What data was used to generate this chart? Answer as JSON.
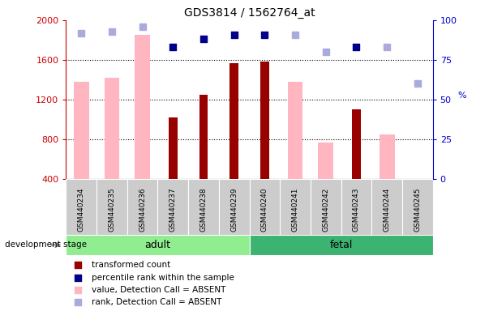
{
  "title": "GDS3814 / 1562764_at",
  "samples": [
    "GSM440234",
    "GSM440235",
    "GSM440236",
    "GSM440237",
    "GSM440238",
    "GSM440239",
    "GSM440240",
    "GSM440241",
    "GSM440242",
    "GSM440243",
    "GSM440244",
    "GSM440245"
  ],
  "groups": [
    "adult",
    "adult",
    "adult",
    "adult",
    "adult",
    "adult",
    "fetal",
    "fetal",
    "fetal",
    "fetal",
    "fetal",
    "fetal"
  ],
  "transformed_count": [
    null,
    null,
    null,
    1020,
    1250,
    1570,
    1580,
    null,
    null,
    1100,
    null,
    null
  ],
  "percentile_rank": [
    null,
    null,
    null,
    83,
    88,
    91,
    91,
    null,
    null,
    83,
    null,
    null
  ],
  "absent_value": [
    1380,
    1420,
    1850,
    null,
    null,
    null,
    null,
    1380,
    770,
    null,
    850,
    null
  ],
  "absent_rank": [
    92,
    93,
    96,
    null,
    null,
    null,
    null,
    91,
    80,
    null,
    83,
    60
  ],
  "ylim_left": [
    400,
    2000
  ],
  "ylim_right": [
    0,
    100
  ],
  "yticks_left": [
    400,
    800,
    1200,
    1600,
    2000
  ],
  "yticks_right": [
    0,
    25,
    50,
    75,
    100
  ],
  "dark_red": "#990000",
  "pink": "#FFB6C1",
  "dark_blue": "#00008B",
  "light_blue": "#AAAADD",
  "adult_color": "#90EE90",
  "fetal_color": "#3CB371",
  "axis_left_color": "#CC0000",
  "axis_right_color": "#0000CC",
  "background_color": "#FFFFFF",
  "sample_box_color": "#CCCCCC"
}
